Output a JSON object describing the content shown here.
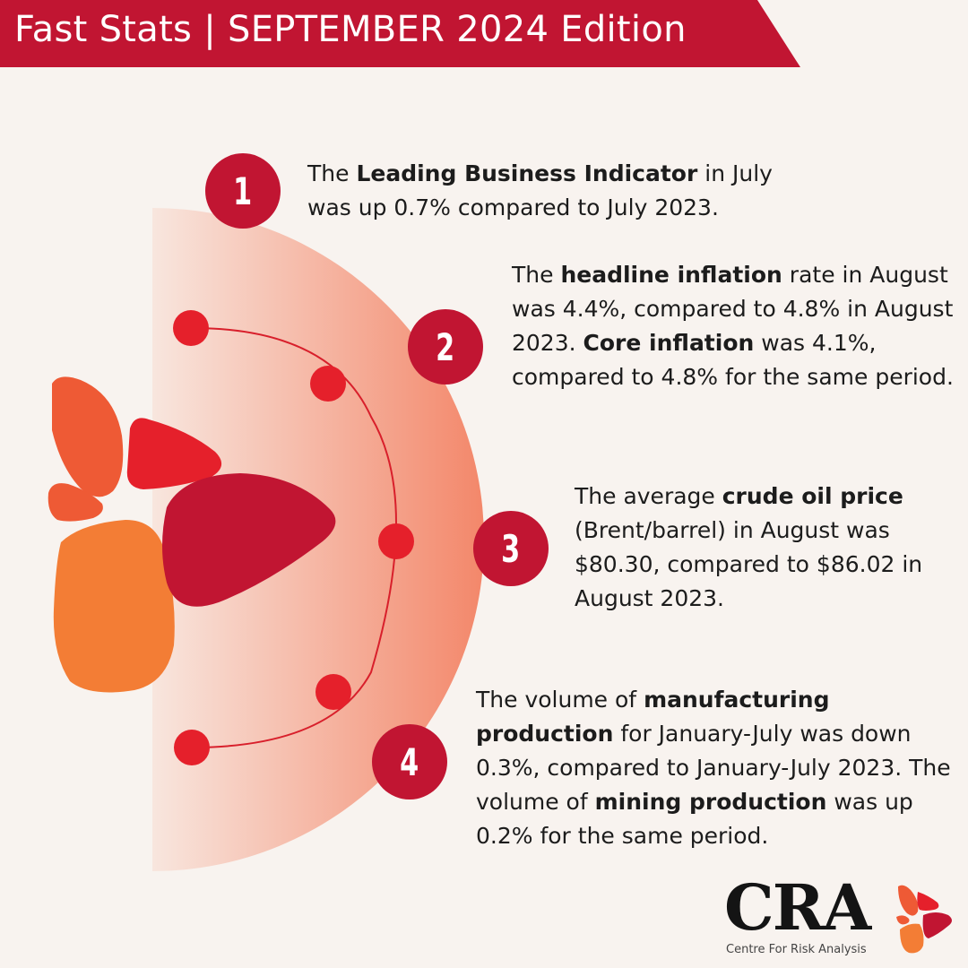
{
  "banner": {
    "title": "Fast Stats | SEPTEMBER 2024 Edition"
  },
  "stats": [
    {
      "number": "1",
      "parts": [
        {
          "t": "The ",
          "b": false
        },
        {
          "t": "Leading Business Indicator",
          "b": true
        },
        {
          "t": " in July was up 0.7% compared to July 2023.",
          "b": false
        }
      ]
    },
    {
      "number": "2",
      "parts": [
        {
          "t": "The ",
          "b": false
        },
        {
          "t": "headline inflation",
          "b": true
        },
        {
          "t": " rate in August was 4.4%, compared to 4.8% in August 2023. ",
          "b": false
        },
        {
          "t": "Core inflation",
          "b": true
        },
        {
          "t": " was 4.1%, compared to 4.8% for the same period.",
          "b": false
        }
      ]
    },
    {
      "number": "3",
      "parts": [
        {
          "t": "The average ",
          "b": false
        },
        {
          "t": "crude oil price",
          "b": true
        },
        {
          "t": " (Brent/barrel) in August was $80.30, compared to $86.02 in August 2023.",
          "b": false
        }
      ]
    },
    {
      "number": "4",
      "parts": [
        {
          "t": "The volume of ",
          "b": false
        },
        {
          "t": "manufacturing production",
          "b": true
        },
        {
          "t": " for January-July was down 0.3%, compared to January-July 2023. The volume of ",
          "b": false
        },
        {
          "t": "mining production",
          "b": true
        },
        {
          "t": " was up 0.2% for the same period.",
          "b": false
        }
      ]
    }
  ],
  "logo": {
    "wordmark": "CRA",
    "subtitle": "Centre For Risk Analysis"
  },
  "colors": {
    "brand_red": "#c11532",
    "bright_red": "#e5202b",
    "orange": "#f37d35",
    "coral": "#ee5a35",
    "background": "#f8f3ef"
  }
}
